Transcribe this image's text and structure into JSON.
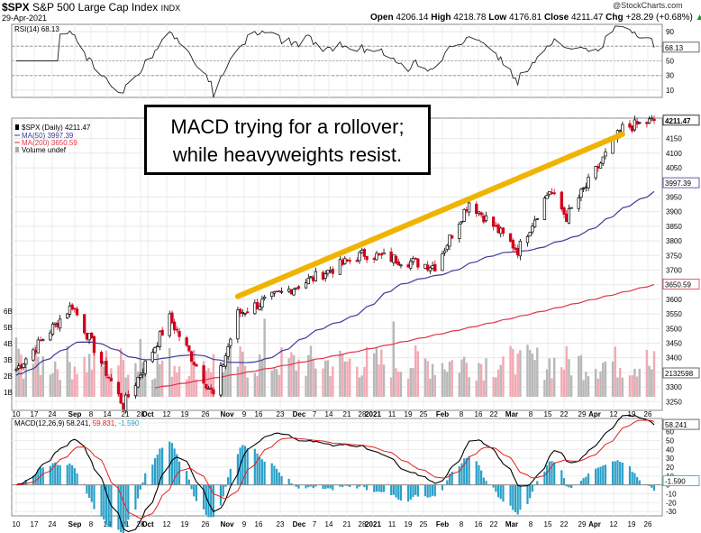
{
  "header": {
    "symbol": "$SPX",
    "name": "S&P 500 Large Cap Index",
    "exchange": "INDX",
    "date": "29-Apr-2021",
    "brand": "@StockCharts.com",
    "open_label": "Open",
    "open": "4206.14",
    "high_label": "High",
    "high": "4218.78",
    "low_label": "Low",
    "low": "4176.81",
    "close_label": "Close",
    "close": "4211.47",
    "chg_label": "Chg",
    "chg": "+28.29 (+0.68%)",
    "chg_arrow": "▲"
  },
  "annotation": {
    "line1": "MACD trying for a rollover;",
    "line2": "while heavyweights resist."
  },
  "rsi_panel": {
    "legend": "RSI(14) 68.13",
    "value_tag": "68.13",
    "ticks": [
      "90",
      "70",
      "50",
      "30",
      "10"
    ]
  },
  "price_panel": {
    "legend_price": "$SPX (Daily) 4211.47",
    "legend_ma50": "MA(50) 3997.39",
    "legend_ma200": "MA(200) 3650.59",
    "legend_volume": "Volume undef",
    "price_tag": "4211.47",
    "ma50_tag": "3997.39",
    "ma200_tag": "3650.59",
    "volume_tag": "2132598",
    "y_ticks": [
      "4150",
      "4100",
      "4050",
      "3950",
      "3900",
      "3850",
      "3800",
      "3750",
      "3700",
      "3650",
      "3600",
      "3550",
      "3500",
      "3450",
      "3400",
      "3350",
      "3300",
      "3250"
    ],
    "volume_ticks": [
      "6B",
      "5B",
      "4B",
      "3B",
      "2B",
      "1B"
    ],
    "colors": {
      "up": "#000000",
      "down": "#d0021b",
      "ma50": "#3b3b9e",
      "ma200": "#e0364a",
      "vol_up": "#b8b8b8",
      "vol_down": "#f2a9b3",
      "trendline": "#f0b400"
    }
  },
  "macd_panel": {
    "legend_label": "MACD(12,26,9)",
    "legend_macd": "58.241,",
    "legend_signal": "59.831,",
    "legend_hist": "-1.590",
    "macd_tag": "58.241",
    "hist_tag": "-1.590",
    "ticks": [
      "70",
      "60",
      "50",
      "40",
      "30",
      "20",
      "10",
      "0",
      "-10",
      "-20",
      "-30"
    ]
  },
  "x_axis": {
    "labels": [
      "10",
      "17",
      "24",
      "Sep",
      "8",
      "14",
      "21",
      "28",
      "Oct",
      "12",
      "19",
      "26",
      "Nov",
      "9",
      "16",
      "23",
      "Dec",
      "7",
      "14",
      "21",
      "28",
      "2021",
      "11",
      "19",
      "25",
      "Feb",
      "8",
      "16",
      "22",
      "Mar",
      "8",
      "15",
      "22",
      "29",
      "Apr",
      "12",
      "19",
      "26"
    ]
  },
  "chart_data": {
    "type": "candlestick",
    "title": "$SPX S&P 500 Large Cap Index",
    "period": "Daily",
    "last_date": "29-Apr-2021",
    "ohlc_last": {
      "open": 4206.14,
      "high": 4218.78,
      "low": 4176.81,
      "close": 4211.47
    },
    "x_range": [
      "2020-08-10",
      "2021-04-29"
    ],
    "ylim": [
      3220,
      4220
    ],
    "key_closes": [
      {
        "date": "2020-08-10",
        "close": 3360
      },
      {
        "date": "2020-09-02",
        "close": 3580
      },
      {
        "date": "2020-09-23",
        "close": 3237
      },
      {
        "date": "2020-10-12",
        "close": 3535
      },
      {
        "date": "2020-10-30",
        "close": 3270
      },
      {
        "date": "2020-11-09",
        "close": 3550
      },
      {
        "date": "2020-12-31",
        "close": 3756
      },
      {
        "date": "2021-01-29",
        "close": 3714
      },
      {
        "date": "2021-02-12",
        "close": 3934
      },
      {
        "date": "2021-03-04",
        "close": 3768
      },
      {
        "date": "2021-03-17",
        "close": 3974
      },
      {
        "date": "2021-03-24",
        "close": 3881
      },
      {
        "date": "2021-04-16",
        "close": 4185
      },
      {
        "date": "2021-04-29",
        "close": 4211.47
      }
    ],
    "ma50_last": 3997.39,
    "ma200_last": 3650.59,
    "rsi_last": 68.13,
    "macd_last": 58.241,
    "signal_last": 59.831,
    "hist_last": -1.59,
    "trendline": [
      {
        "date": "2020-11-09",
        "value": 3610
      },
      {
        "date": "2021-04-16",
        "value": 4165
      }
    ],
    "rsi_ylim": [
      0,
      100
    ],
    "macd_ylim": [
      -35,
      75
    ]
  }
}
